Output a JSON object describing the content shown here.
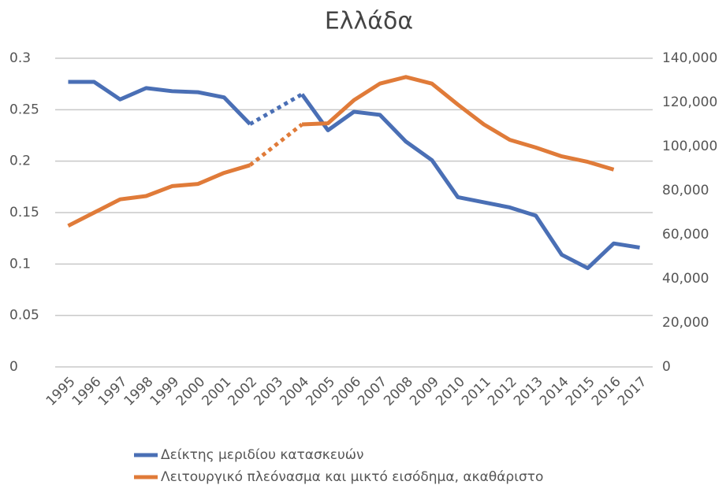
{
  "chart_data": {
    "type": "line",
    "title": "Ελλάδα",
    "categories": [
      "1995",
      "1996",
      "1997",
      "1998",
      "1999",
      "2000",
      "2001",
      "2002",
      "2003",
      "2004",
      "2005",
      "2006",
      "2007",
      "2008",
      "2009",
      "2010",
      "2011",
      "2012",
      "2013",
      "2014",
      "2015",
      "2016",
      "2017"
    ],
    "series": [
      {
        "name": "Δείκτης μεριδίου κατασκευών",
        "color": "#4a6fb5",
        "axis": "y",
        "values": [
          0.277,
          0.277,
          0.26,
          0.271,
          0.268,
          0.267,
          0.262,
          0.236,
          null,
          0.265,
          0.23,
          0.248,
          0.245,
          0.219,
          0.201,
          0.165,
          0.16,
          0.155,
          0.147,
          0.109,
          0.096,
          0.12,
          0.116
        ]
      },
      {
        "name": "Λειτουργικό πλεόνασμα και μικτό εισόδημα, ακαθάριστο",
        "color": "#e07b39",
        "axis": "y2",
        "values": [
          64000,
          70000,
          76000,
          77500,
          82000,
          83000,
          88000,
          91500,
          null,
          110000,
          110500,
          121000,
          128500,
          131500,
          128500,
          119000,
          110000,
          103000,
          99500,
          95500,
          93000,
          89500,
          null
        ]
      }
    ],
    "ylim": [
      0,
      0.3
    ],
    "yticks": [
      0,
      0.05,
      0.1,
      0.15,
      0.2,
      0.25,
      0.3
    ],
    "y2lim": [
      0,
      140000
    ],
    "y2ticks": [
      0,
      {
        "value": 20000,
        "label": "20,000"
      },
      {
        "value": 40000,
        "label": "40,000"
      },
      {
        "value": 60000,
        "label": "60,000"
      },
      {
        "value": 80000,
        "label": "80,000"
      },
      {
        "value": 100000,
        "label": "100,000"
      },
      {
        "value": 120000,
        "label": "120,000"
      },
      {
        "value": 140000,
        "label": "140,000"
      }
    ],
    "grid": true,
    "legend": "bottom"
  }
}
